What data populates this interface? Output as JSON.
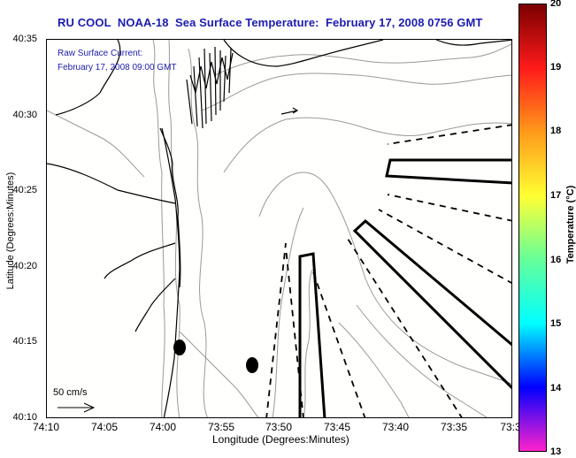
{
  "title": "RU COOL  NOAA-18  Sea Surface Temperature:  February 17, 2008 0756 GMT",
  "legend": {
    "line1": "Raw Surface Current:",
    "line2": "February 17, 2008 09:00 GMT"
  },
  "scale_arrow_label": "50 cm/s",
  "chart_data": {
    "type": "map",
    "title": "RU COOL  NOAA-18  Sea Surface Temperature:  February 17, 2008 0756 GMT",
    "xlabel": "Longitude (Degrees:Minutes)",
    "ylabel": "Latitude (Degrees:Minutes)",
    "x_ticks": [
      "74:10",
      "74:05",
      "74:00",
      "73:55",
      "73:50",
      "73:45",
      "73:40",
      "73:35",
      "73:3"
    ],
    "y_ticks": [
      "40:35",
      "40:30",
      "40:25",
      "40:20",
      "40:15",
      "40:10"
    ],
    "xlim": [
      "74:10",
      "73:30"
    ],
    "ylim": [
      "40:10",
      "40:35"
    ],
    "colorbar": {
      "label": "Temperature (°C)",
      "ticks": [
        "20",
        "19",
        "18",
        "17",
        "16",
        "15",
        "14",
        "13"
      ],
      "range": [
        13,
        20
      ],
      "colors": [
        "#7a0000",
        "#ff1a1a",
        "#ff9a1a",
        "#ffff33",
        "#66ff99",
        "#00ffff",
        "#0000ff",
        "#ff22cc"
      ]
    },
    "markers": [
      {
        "type": "filled-ellipse",
        "lon": "73:58.7",
        "lat": "40:14.6"
      },
      {
        "type": "filled-ellipse",
        "lon": "73:52.3",
        "lat": "40:13.4"
      }
    ],
    "colors": {
      "title": "#1b1bb0",
      "coastline": "#000000",
      "bathymetry": "#999999",
      "plot_bg": "#fffffd"
    }
  }
}
